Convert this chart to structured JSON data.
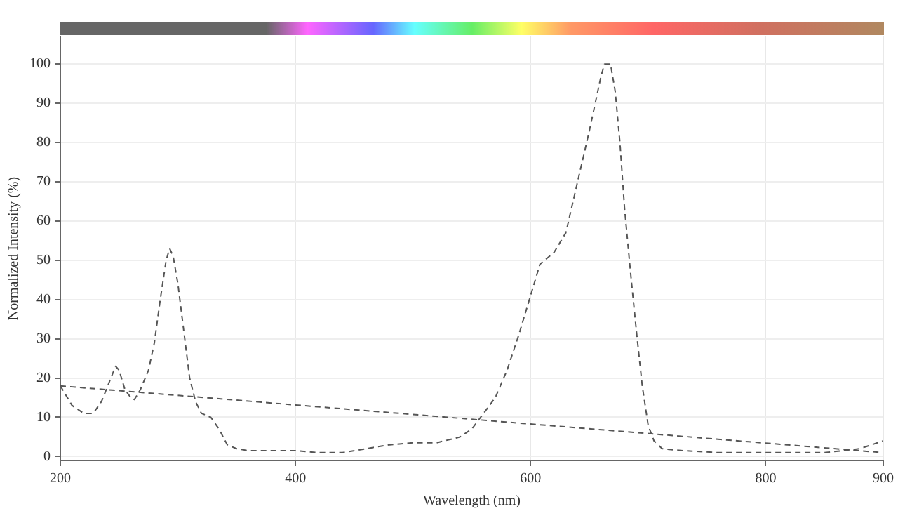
{
  "chart_data": {
    "type": "line",
    "xlabel": "Wavelength (nm)",
    "ylabel": "Normalized Intensity (%)",
    "xlim": [
      200,
      900
    ],
    "xticks": [
      200,
      400,
      600,
      800,
      900
    ],
    "ylim": [
      -1,
      107
    ],
    "yticks": [
      0,
      10,
      20,
      30,
      40,
      50,
      60,
      70,
      80,
      90,
      100
    ],
    "grid": true,
    "legend": false,
    "marker": "none",
    "line_style": "dashed",
    "series": [
      {
        "color": "#555555",
        "x": [
          200,
          210,
          220,
          228,
          235,
          243,
          247,
          250,
          255,
          260,
          263,
          268,
          275,
          280,
          285,
          290,
          293,
          296,
          300,
          305,
          310,
          315,
          320,
          328,
          335,
          342,
          350,
          360,
          380,
          400,
          420,
          440,
          460,
          480,
          500,
          520,
          540,
          550,
          560,
          570,
          580,
          590,
          600,
          608,
          620,
          630,
          640,
          650,
          655,
          660,
          663,
          668,
          672,
          676,
          680,
          685,
          690,
          695,
          700,
          705,
          712,
          730,
          760,
          800,
          850,
          880,
          890,
          900
        ],
        "values": [
          18,
          13,
          11,
          11,
          14,
          20,
          23,
          22,
          17,
          15,
          14.5,
          17,
          22,
          29,
          40,
          50,
          53,
          51,
          44,
          32,
          20,
          14,
          11,
          10,
          7,
          3,
          2,
          1.5,
          1.5,
          1.5,
          1,
          1,
          2,
          3,
          3.5,
          3.5,
          5,
          7,
          11,
          15,
          22,
          31,
          41,
          49,
          52,
          57,
          70,
          83,
          90,
          97,
          100,
          100,
          93,
          80,
          63,
          47,
          32,
          18,
          8,
          4,
          2,
          1.5,
          1,
          1,
          1,
          2,
          3,
          4
        ]
      },
      {
        "color": "#555555",
        "x": [
          200,
          900
        ],
        "values": [
          18,
          1
        ]
      }
    ]
  }
}
